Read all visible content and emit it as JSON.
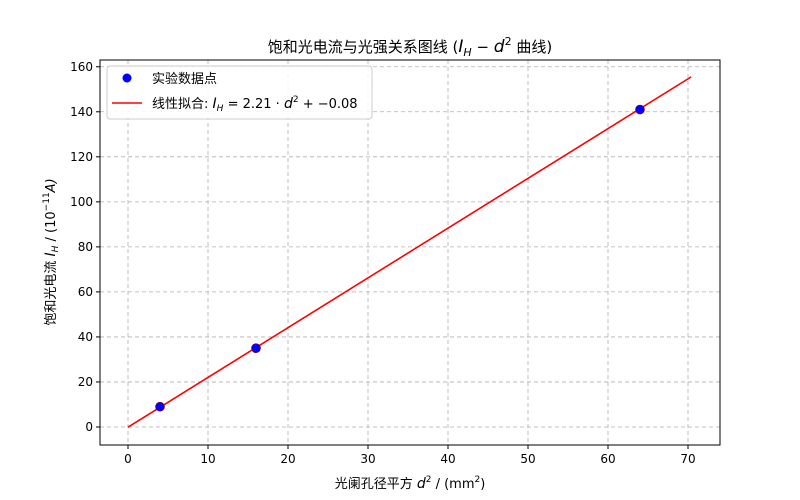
{
  "chart_data": {
    "type": "scatter",
    "title": "饱和光电流与光强关系图线 (I_H − d² 曲线)",
    "title_parts": {
      "main": "饱和光电流与光强关系图线 (",
      "var1": "I",
      "sub1": "H",
      "minus": " − ",
      "var2": "d",
      "sup2": "2",
      "tail": " 曲线)"
    },
    "xlabel": "光阑孔径平方 d² / (mm²)",
    "xlabel_parts": {
      "main": "光阑孔径平方 ",
      "var": "d",
      "sup": "2",
      "unit": " / (mm",
      "unit_sup": "2",
      "close": ")"
    },
    "ylabel": "饱和光电流 I_H / (10⁻¹¹A)",
    "ylabel_parts": {
      "main": "饱和光电流 ",
      "var": "I",
      "sub": "H",
      "unit": " / (10",
      "unit_sup": "−11",
      "unit_end": "A)"
    },
    "xlim": [
      -3.5,
      74
    ],
    "ylim": [
      -8,
      163
    ],
    "x_ticks": [
      0,
      10,
      20,
      30,
      40,
      50,
      60,
      70
    ],
    "y_ticks": [
      0,
      20,
      40,
      60,
      80,
      100,
      120,
      140,
      160
    ],
    "grid": true,
    "legend_position": "top-left",
    "series": [
      {
        "name": "实验数据点",
        "kind": "scatter",
        "color": "#0000ff",
        "edge_color": "#7f0000",
        "points": [
          {
            "x": 4,
            "y": 9
          },
          {
            "x": 16,
            "y": 35
          },
          {
            "x": 64,
            "y": 141
          }
        ]
      },
      {
        "name": "线性拟合: I_H = 2.21·d² + −0.08",
        "name_parts": {
          "main": "线性拟合: ",
          "var": "I",
          "sub": "H",
          "eq": " = 2.21 · ",
          "var2": "d",
          "sup": "2",
          "tail": " + −0.08"
        },
        "kind": "line",
        "color": "#ff0000",
        "slope": 2.21,
        "intercept": -0.08,
        "x_range": [
          0,
          70.4
        ]
      }
    ]
  }
}
